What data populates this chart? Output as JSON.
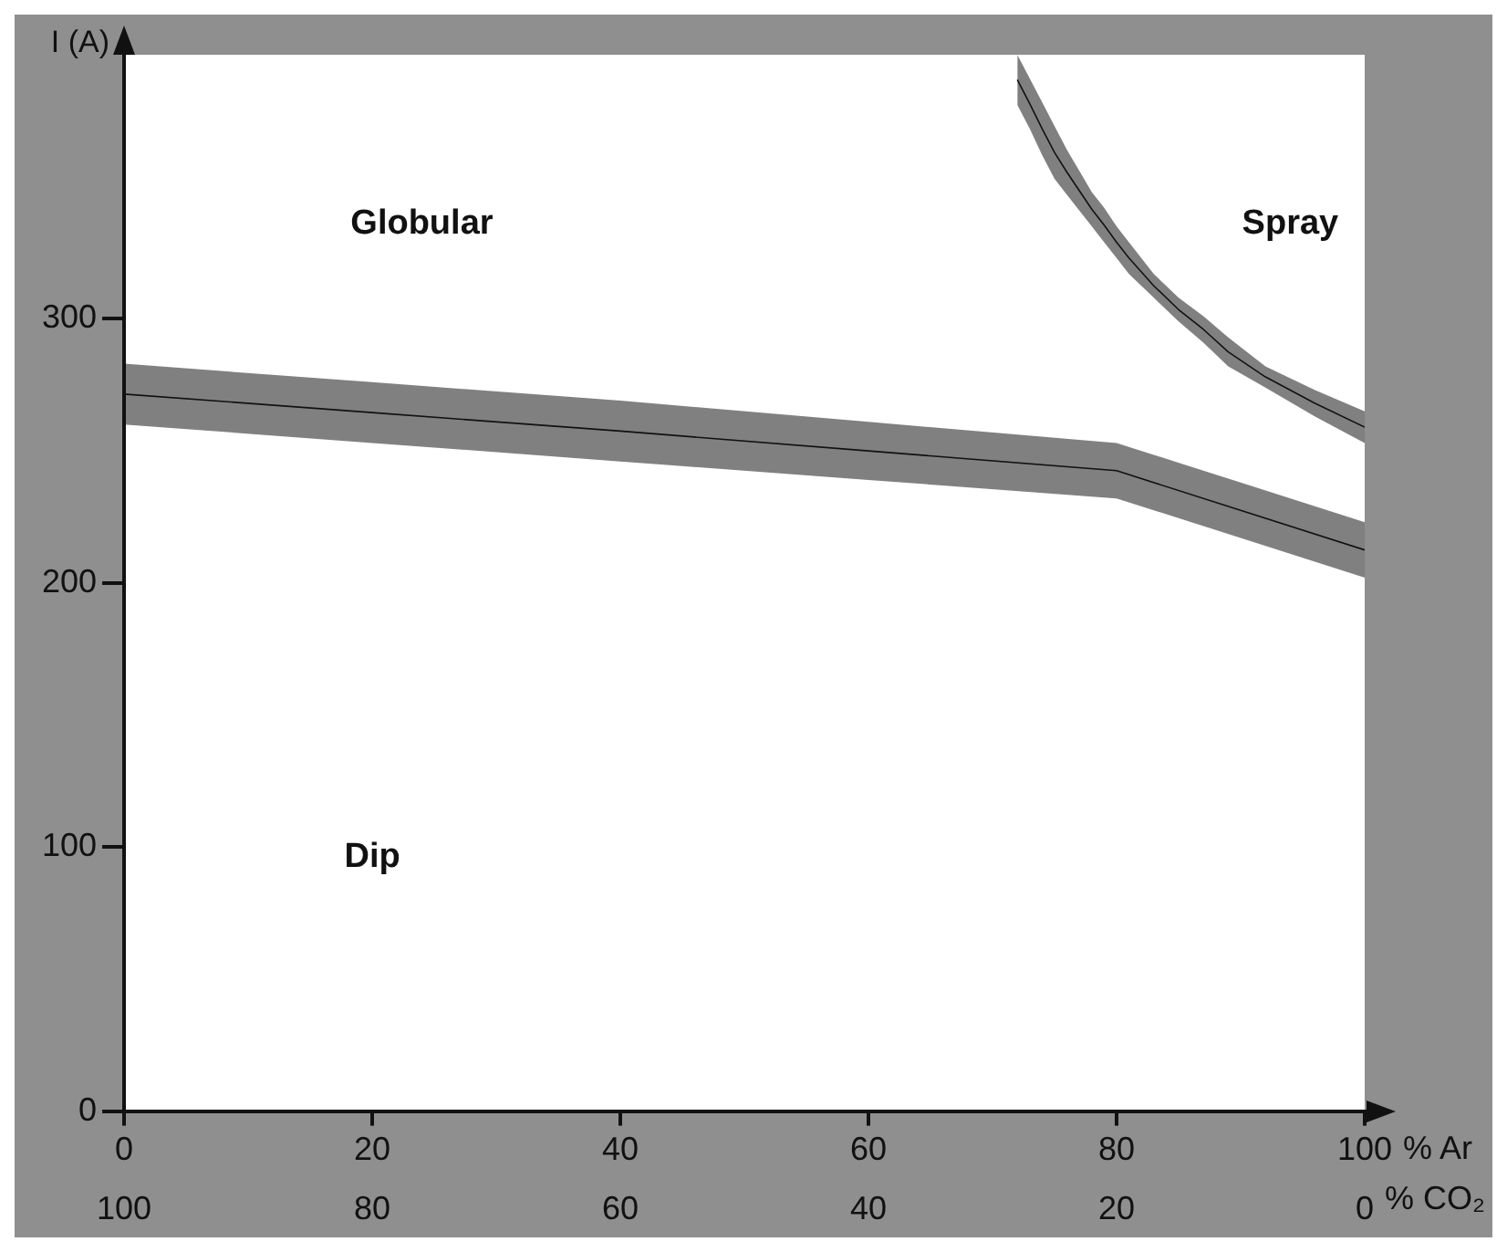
{
  "chart_data": {
    "type": "line",
    "xlabel": "% Ar",
    "x2label": "% CO₂",
    "ylabel": "I (A)",
    "xlim": [
      0,
      100
    ],
    "ylim": [
      0,
      400
    ],
    "x2lim": [
      100,
      0
    ],
    "xticks": [
      0,
      20,
      40,
      60,
      80,
      100
    ],
    "x2ticks": [
      100,
      80,
      60,
      40,
      20,
      0
    ],
    "yticks": [
      0,
      100,
      200,
      300
    ],
    "grid": false,
    "legend": false,
    "marker": "none",
    "line_style": "solid",
    "series": [
      {
        "color": "#111111",
        "x": [
          0,
          20,
          40,
          60,
          80,
          90,
          100
        ],
        "lower": [
          260,
          253,
          246,
          239,
          232,
          217,
          202
        ],
        "upper": [
          283,
          276,
          269,
          261,
          253,
          238,
          223
        ],
        "values": [
          271.5,
          264.5,
          257.5,
          250,
          242.5,
          227.5,
          212.5
        ]
      },
      {
        "color": "#111111",
        "x": [
          72,
          73,
          74,
          75,
          76,
          77,
          78,
          79,
          80,
          81,
          83,
          85,
          87,
          89,
          92,
          96,
          100
        ],
        "lower": [
          381,
          372,
          362,
          353,
          347,
          341,
          335,
          329,
          323,
          317,
          308,
          299,
          291,
          282,
          274,
          263,
          253
        ],
        "upper": [
          400,
          391,
          382,
          373,
          364,
          356,
          348,
          342,
          335,
          329,
          317,
          308,
          301,
          293,
          282,
          273,
          265
        ],
        "values": [
          390.5,
          381.5,
          372,
          363,
          355.5,
          348.5,
          341.5,
          335.5,
          329,
          323,
          312.5,
          303.5,
          296,
          287.5,
          278,
          268,
          259
        ]
      }
    ],
    "annotations": [
      "Globular",
      "Spray",
      "Dip"
    ]
  }
}
